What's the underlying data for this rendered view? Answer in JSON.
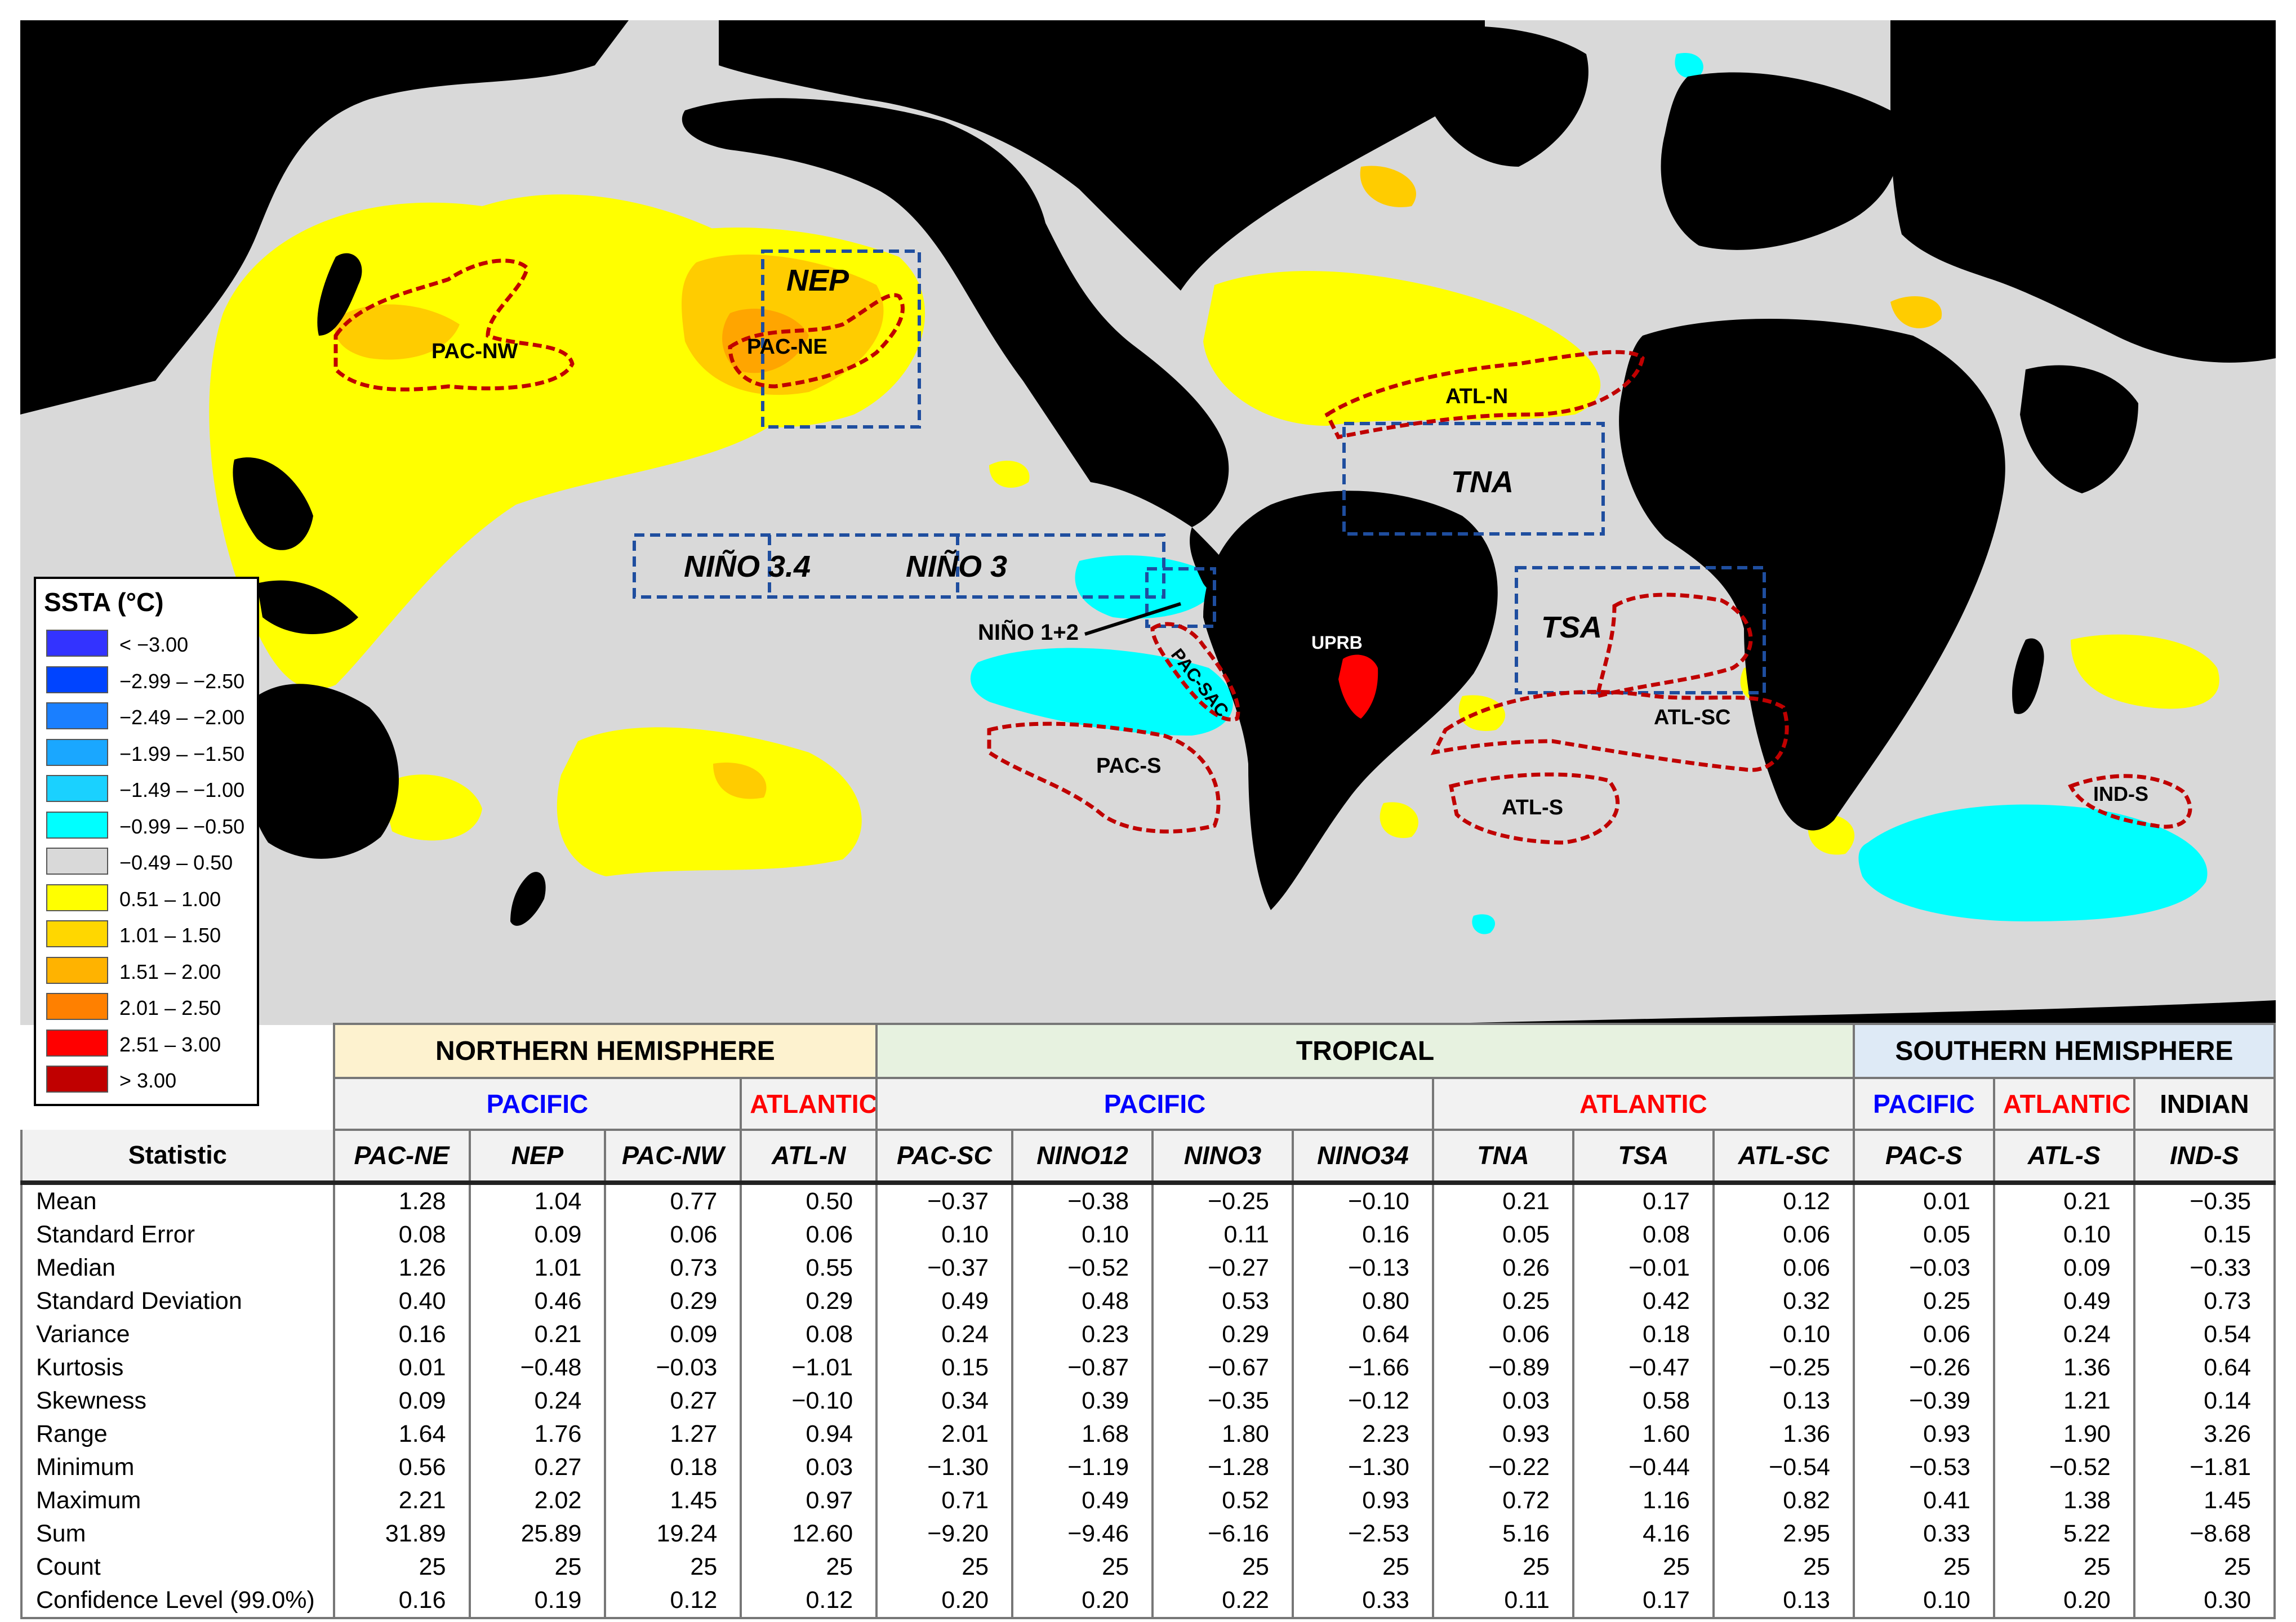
{
  "colors": {
    "ocean_neutral": "#d9d9d9",
    "land": "#000000",
    "yellow": "#ffff00",
    "light_orange": "#ffcc00",
    "orange": "#ffa500",
    "cyan": "#00ffff",
    "region_outline": "#c00000",
    "box_outline": "#1f4e9f",
    "uprb": "#ff0000"
  },
  "map": {
    "region_labels": {
      "pac_nw": "PAC-NW",
      "pac_ne": "PAC-NE",
      "nep": "NEP",
      "atl_n": "ATL-N",
      "tna": "TNA",
      "nino34": "NIÑO 3.4",
      "nino3": "NIÑO 3",
      "nino12": "NIÑO 1+2",
      "pac_sac": "PAC-SAC",
      "tsa": "TSA",
      "atl_sc": "ATL-SC",
      "pac_s": "PAC-S",
      "atl_s": "ATL-S",
      "ind_s": "IND-S",
      "uprb": "UPRB"
    }
  },
  "legend": {
    "title": "SSTA (°C)",
    "items": [
      {
        "label": "< −3.00",
        "color": "#3333ff"
      },
      {
        "label": "−2.99 – −2.50",
        "color": "#0044ff"
      },
      {
        "label": "−2.49 – −2.00",
        "color": "#1a7fff"
      },
      {
        "label": "−1.99 – −1.50",
        "color": "#1aa7ff"
      },
      {
        "label": "−1.49 – −1.00",
        "color": "#1ad1ff"
      },
      {
        "label": "−0.99 – −0.50",
        "color": "#00ffff"
      },
      {
        "label": "−0.49 – 0.50",
        "color": "#d9d9d9"
      },
      {
        "label": "0.51 – 1.00",
        "color": "#ffff00"
      },
      {
        "label": "1.01 – 1.50",
        "color": "#ffd700"
      },
      {
        "label": "1.51 – 2.00",
        "color": "#ffb300"
      },
      {
        "label": "2.01 – 2.50",
        "color": "#ff8000"
      },
      {
        "label": "2.51 – 3.00",
        "color": "#ff0000"
      },
      {
        "label": "> 3.00",
        "color": "#c00000"
      }
    ]
  },
  "table": {
    "groups": {
      "northern": "NORTHERN HEMISPHERE",
      "tropical": "TROPICAL",
      "southern": "SOUTHERN HEMISPHERE"
    },
    "subgroups": {
      "nh_pacific": "PACIFIC",
      "nh_atlantic": "ATLANTIC",
      "tr_pacific": "PACIFIC",
      "tr_atlantic": "ATLANTIC",
      "sh_pacific": "PACIFIC",
      "sh_atlantic": "ATLANTIC",
      "sh_indian": "INDIAN"
    },
    "stat_header": "Statistic",
    "columns": [
      "PAC-NE",
      "NEP",
      "PAC-NW",
      "ATL-N",
      "PAC-SC",
      "NINO12",
      "NINO3",
      "NINO34",
      "TNA",
      "TSA",
      "ATL-SC",
      "PAC-S",
      "ATL-S",
      "IND-S"
    ],
    "rows": [
      {
        "name": "Mean",
        "values": [
          "1.28",
          "1.04",
          "0.77",
          "0.50",
          "−0.37",
          "−0.38",
          "−0.25",
          "−0.10",
          "0.21",
          "0.17",
          "0.12",
          "0.01",
          "0.21",
          "−0.35"
        ]
      },
      {
        "name": "Standard Error",
        "values": [
          "0.08",
          "0.09",
          "0.06",
          "0.06",
          "0.10",
          "0.10",
          "0.11",
          "0.16",
          "0.05",
          "0.08",
          "0.06",
          "0.05",
          "0.10",
          "0.15"
        ]
      },
      {
        "name": "Median",
        "values": [
          "1.26",
          "1.01",
          "0.73",
          "0.55",
          "−0.37",
          "−0.52",
          "−0.27",
          "−0.13",
          "0.26",
          "−0.01",
          "0.06",
          "−0.03",
          "0.09",
          "−0.33"
        ]
      },
      {
        "name": "Standard Deviation",
        "values": [
          "0.40",
          "0.46",
          "0.29",
          "0.29",
          "0.49",
          "0.48",
          "0.53",
          "0.80",
          "0.25",
          "0.42",
          "0.32",
          "0.25",
          "0.49",
          "0.73"
        ]
      },
      {
        "name": "Variance",
        "values": [
          "0.16",
          "0.21",
          "0.09",
          "0.08",
          "0.24",
          "0.23",
          "0.29",
          "0.64",
          "0.06",
          "0.18",
          "0.10",
          "0.06",
          "0.24",
          "0.54"
        ]
      },
      {
        "name": "Kurtosis",
        "values": [
          "0.01",
          "−0.48",
          "−0.03",
          "−1.01",
          "0.15",
          "−0.87",
          "−0.67",
          "−1.66",
          "−0.89",
          "−0.47",
          "−0.25",
          "−0.26",
          "1.36",
          "0.64"
        ]
      },
      {
        "name": "Skewness",
        "values": [
          "0.09",
          "0.24",
          "0.27",
          "−0.10",
          "0.34",
          "0.39",
          "−0.35",
          "−0.12",
          "0.03",
          "0.58",
          "0.13",
          "−0.39",
          "1.21",
          "0.14"
        ]
      },
      {
        "name": "Range",
        "values": [
          "1.64",
          "1.76",
          "1.27",
          "0.94",
          "2.01",
          "1.68",
          "1.80",
          "2.23",
          "0.93",
          "1.60",
          "1.36",
          "0.93",
          "1.90",
          "3.26"
        ]
      },
      {
        "name": "Minimum",
        "values": [
          "0.56",
          "0.27",
          "0.18",
          "0.03",
          "−1.30",
          "−1.19",
          "−1.28",
          "−1.30",
          "−0.22",
          "−0.44",
          "−0.54",
          "−0.53",
          "−0.52",
          "−1.81"
        ]
      },
      {
        "name": "Maximum",
        "values": [
          "2.21",
          "2.02",
          "1.45",
          "0.97",
          "0.71",
          "0.49",
          "0.52",
          "0.93",
          "0.72",
          "1.16",
          "0.82",
          "0.41",
          "1.38",
          "1.45"
        ]
      },
      {
        "name": "Sum",
        "values": [
          "31.89",
          "25.89",
          "19.24",
          "12.60",
          "−9.20",
          "−9.46",
          "−6.16",
          "−2.53",
          "5.16",
          "4.16",
          "2.95",
          "0.33",
          "5.22",
          "−8.68"
        ]
      },
      {
        "name": "Count",
        "values": [
          "25",
          "25",
          "25",
          "25",
          "25",
          "25",
          "25",
          "25",
          "25",
          "25",
          "25",
          "25",
          "25",
          "25"
        ]
      },
      {
        "name": "Confidence Level (99.0%)",
        "values": [
          "0.16",
          "0.19",
          "0.12",
          "0.12",
          "0.20",
          "0.20",
          "0.22",
          "0.33",
          "0.11",
          "0.17",
          "0.13",
          "0.10",
          "0.20",
          "0.30"
        ]
      }
    ]
  }
}
